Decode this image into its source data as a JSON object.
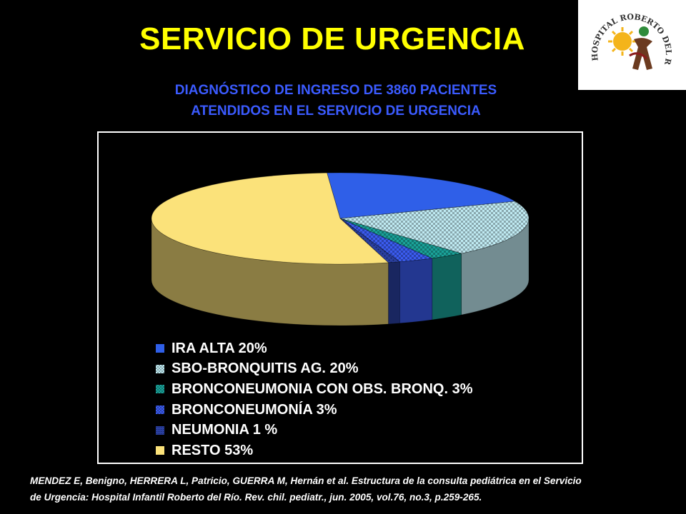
{
  "slide": {
    "title": "SERVICIO DE URGENCIA",
    "subtitle_line1": "DIAGNÓSTICO DE INGRESO DE 3860 PACIENTES",
    "subtitle_line2": "ATENDIDOS EN EL SERVICIO DE URGENCIA",
    "logo_text": "HOSPITAL ROBERTO DEL RIO",
    "citation_line1": "MENDEZ E, Benigno, HERRERA L, Patricio, GUERRA M, Hernán et al. Estructura de la consulta pediátrica en el Servicio",
    "citation_line2": "de Urgencia: Hospital Infantil Roberto del Río. Rev. chil. pediatr., jun. 2005, vol.76, no.3, p.259-265."
  },
  "colors": {
    "background": "#000000",
    "title": "#ffff00",
    "subtitle": "#3b5bff"
  },
  "chart_data": {
    "type": "pie",
    "style": "3d",
    "legend_position": "bottom",
    "slices": [
      {
        "label": "IRA ALTA 20%",
        "value": 20,
        "color": "#2f5fe8",
        "pattern": "solid"
      },
      {
        "label": "SBO-BRONQUITIS AG. 20%",
        "value": 20,
        "color": "#bfeaf2",
        "pattern": "checker"
      },
      {
        "label": "BRONCONEUMONIA CON OBS. BRONQ. 3%",
        "value": 3,
        "color": "#1aa39a",
        "pattern": "checker"
      },
      {
        "label": "BRONCONEUMONÍA 3%",
        "value": 3,
        "color": "#3b5cf0",
        "pattern": "checker"
      },
      {
        "label": "NEUMONIA 1 %",
        "value": 1,
        "color": "#2a3fa0",
        "pattern": "dots"
      },
      {
        "label": "RESTO 53%",
        "value": 53,
        "color": "#fbe27a",
        "pattern": "solid"
      }
    ]
  }
}
